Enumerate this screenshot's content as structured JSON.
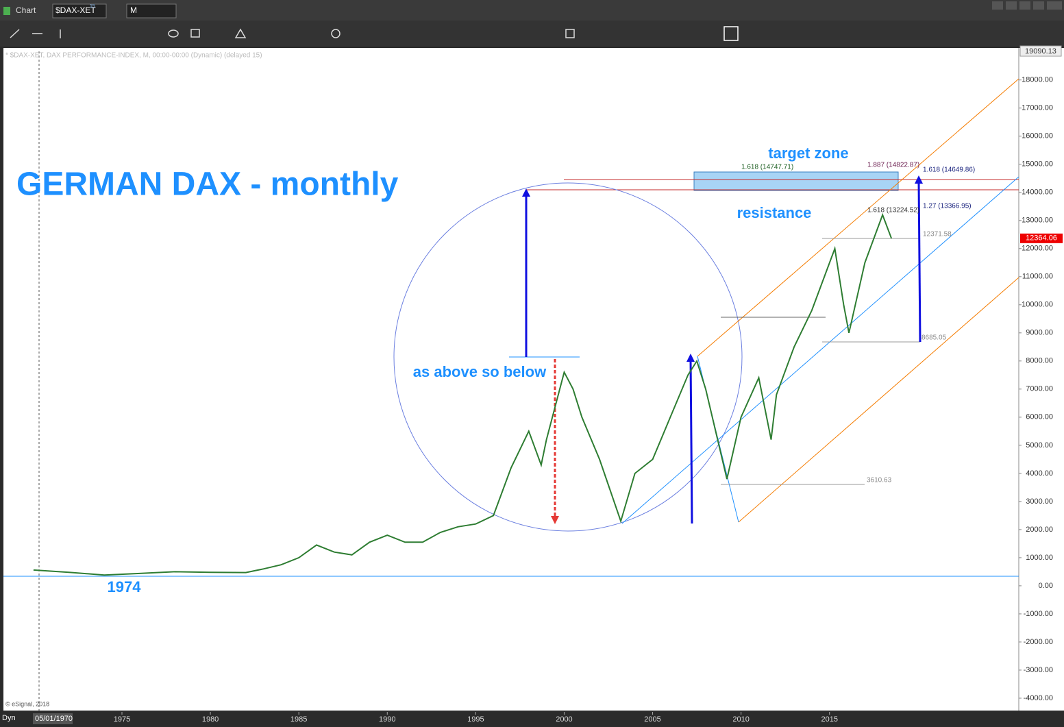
{
  "window": {
    "title": "Chart",
    "symbol": "$DAX-XET",
    "symbol_badge": "15",
    "interval": "M",
    "dyn": "Dyn",
    "start_date": "05/01/1970"
  },
  "chart_data": {
    "type": "line",
    "title": "GERMAN DAX - monthly",
    "subtitle": "* $DAX-XET, DAX PERFORMANCE-INDEX, M, 00:00-00:00 (Dynamic) (delayed 15)",
    "credit": "© eSignal, 2018",
    "x": [
      1970,
      1972,
      1974,
      1976,
      1978,
      1980,
      1982,
      1983,
      1984,
      1985,
      1986,
      1987,
      1988,
      1989,
      1990,
      1991,
      1992,
      1993,
      1994,
      1995,
      1996,
      1997,
      1998,
      1998.7,
      1999,
      2000,
      2000.5,
      2001,
      2002,
      2003.2,
      2004,
      2005,
      2006,
      2007,
      2007.5,
      2008,
      2009.2,
      2010,
      2011,
      2011.7,
      2012,
      2013,
      2014,
      2015.3,
      2015.8,
      2016.1,
      2017,
      2018,
      2018.5
    ],
    "values": [
      560,
      480,
      380,
      440,
      500,
      480,
      470,
      600,
      750,
      1000,
      1450,
      1200,
      1100,
      1550,
      1800,
      1550,
      1550,
      1900,
      2100,
      2200,
      2500,
      4200,
      5500,
      4300,
      5200,
      7600,
      7000,
      6000,
      4500,
      2300,
      4000,
      4500,
      6000,
      7500,
      8000,
      7000,
      3800,
      6000,
      7400,
      5200,
      6800,
      8500,
      9800,
      12000,
      10000,
      9000,
      11500,
      13200,
      12364
    ],
    "color": "#2e7d32",
    "xlim": [
      1968.3,
      2025.7
    ],
    "xticks": [
      1975,
      1980,
      1985,
      1990,
      1995,
      2000,
      2005,
      2010,
      2015
    ],
    "ylim": [
      -4440,
      19090
    ],
    "yticks": [
      {
        "value": -4000,
        "label": "-4000.00"
      },
      {
        "value": -3000,
        "label": "-3000.00"
      },
      {
        "value": -2000,
        "label": "-2000.00"
      },
      {
        "value": -1000,
        "label": "-1000.00"
      },
      {
        "value": 0,
        "label": "0.00"
      },
      {
        "value": 1000,
        "label": "1000.00"
      },
      {
        "value": 2000,
        "label": "2000.00"
      },
      {
        "value": 3000,
        "label": "3000.00"
      },
      {
        "value": 4000,
        "label": "4000.00"
      },
      {
        "value": 5000,
        "label": "5000.00"
      },
      {
        "value": 6000,
        "label": "6000.00"
      },
      {
        "value": 7000,
        "label": "7000.00"
      },
      {
        "value": 8000,
        "label": "8000.00"
      },
      {
        "value": 9000,
        "label": "9000.00"
      },
      {
        "value": 10000,
        "label": "10000.00"
      },
      {
        "value": 11000,
        "label": "11000.00"
      },
      {
        "value": 12000,
        "label": "12000.00"
      },
      {
        "value": 13000,
        "label": "13000.00"
      },
      {
        "value": 14000,
        "label": "14000.00"
      },
      {
        "value": 15000,
        "label": "15000.00"
      },
      {
        "value": 16000,
        "label": "16000.00"
      },
      {
        "value": 17000,
        "label": "17000.00"
      },
      {
        "value": 18000,
        "label": "18000.00"
      }
    ],
    "top_value": 19090.13,
    "last_price": 12364.06,
    "annotations": [
      "target zone",
      "resistance",
      "as above so below",
      "1974",
      "1.618 (14747.71)",
      "1.887 (14822.87)",
      "1.618 (14649.86)",
      "1.618 (13224.52)",
      "1.27 (13366.95)",
      "12371.58",
      "8685.05",
      "3610.63"
    ]
  }
}
